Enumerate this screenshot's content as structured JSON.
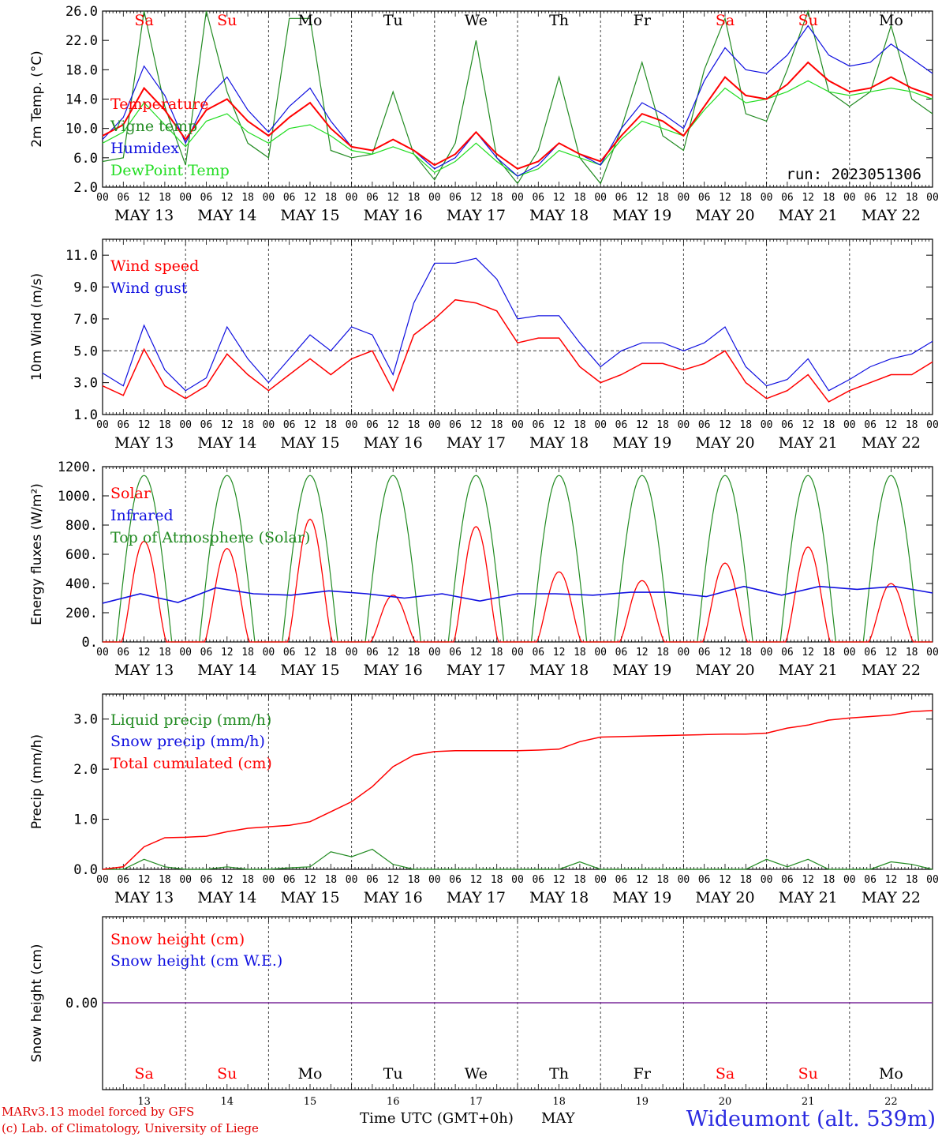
{
  "dates": [
    "MAY 13",
    "MAY 14",
    "MAY 15",
    "MAY 16",
    "MAY 17",
    "MAY 18",
    "MAY 19",
    "MAY 20",
    "MAY 21",
    "MAY 22"
  ],
  "day_abbr": [
    "Sa",
    "Su",
    "Mo",
    "Tu",
    "We",
    "Th",
    "Fr",
    "Sa",
    "Su",
    "Mo"
  ],
  "day_nums": [
    "13",
    "14",
    "15",
    "16",
    "17",
    "18",
    "19",
    "20",
    "21",
    "22"
  ],
  "hour_ticks": [
    "00",
    "06",
    "12",
    "18"
  ],
  "run_label": "run: 2023051306",
  "footer": {
    "model": "MARv3.13 model forced by GFS",
    "credit": "(c) Lab. of Climatology, University of Liege",
    "axis_title": "Time UTC (GMT+0h)",
    "month": "MAY",
    "station": "Wideumont (alt. 539m)"
  },
  "colors": {
    "red": "#ff0000",
    "darkgreen": "#228b22",
    "blue": "#1010e0",
    "lightgreen": "#22dd22",
    "purple": "#7a2a9a"
  },
  "chart_data": [
    {
      "type": "line",
      "ylabel": "2m Temp. (°C)",
      "ylim": [
        2.0,
        26.0
      ],
      "yticks": [
        "2.0",
        "6.0",
        "10.0",
        "14.0",
        "18.0",
        "22.0",
        "26.0"
      ],
      "x_hours": [
        0,
        6,
        12,
        18,
        24,
        30,
        36,
        42,
        48,
        54,
        60,
        66,
        72,
        78,
        84,
        90,
        96,
        102,
        108,
        114,
        120,
        126,
        132,
        138,
        144,
        150,
        156,
        162,
        168,
        174,
        180,
        186,
        192,
        198,
        204,
        210,
        216,
        222,
        228,
        234,
        240
      ],
      "series": [
        {
          "name": "Temperature",
          "color": "red",
          "values": [
            9.0,
            10.5,
            15.5,
            12.5,
            8.5,
            12.5,
            14.0,
            11.0,
            9.0,
            11.5,
            13.5,
            10.0,
            7.5,
            7.0,
            8.5,
            7.0,
            5.0,
            6.5,
            9.5,
            6.5,
            4.5,
            5.5,
            8.0,
            6.5,
            5.5,
            9.0,
            12.0,
            11.0,
            9.0,
            13.0,
            17.0,
            14.5,
            14.0,
            16.0,
            19.0,
            16.5,
            15.0,
            15.5,
            17.0,
            15.5,
            14.5
          ]
        },
        {
          "name": "Vigne temp",
          "color": "darkgreen",
          "values": [
            5.5,
            6.0,
            26.0,
            13.0,
            5.0,
            26.0,
            15.0,
            8.0,
            6.0,
            25.0,
            25.0,
            7.0,
            6.0,
            6.5,
            15.0,
            6.5,
            3.0,
            8.0,
            22.0,
            6.0,
            2.5,
            7.0,
            17.0,
            6.0,
            2.5,
            10.0,
            19.0,
            9.0,
            7.0,
            18.0,
            25.0,
            12.0,
            11.0,
            18.0,
            27.0,
            15.0,
            13.0,
            15.0,
            24.0,
            14.0,
            12.0
          ]
        },
        {
          "name": "Humidex",
          "color": "blue",
          "values": [
            8.5,
            11.5,
            18.5,
            14.5,
            8.0,
            14.0,
            17.0,
            12.5,
            9.5,
            13.0,
            15.5,
            11.0,
            7.5,
            7.0,
            8.5,
            7.0,
            4.5,
            6.0,
            9.5,
            6.0,
            3.5,
            5.0,
            8.0,
            6.5,
            5.0,
            10.0,
            13.5,
            12.0,
            10.0,
            16.5,
            21.0,
            18.0,
            17.5,
            20.0,
            24.0,
            20.0,
            18.5,
            19.0,
            21.5,
            19.5,
            17.5
          ]
        },
        {
          "name": "DewPoint Temp",
          "color": "lightgreen",
          "values": [
            8.0,
            9.5,
            13.5,
            10.5,
            7.5,
            11.0,
            12.0,
            9.5,
            8.0,
            10.0,
            10.5,
            9.0,
            7.0,
            6.5,
            7.5,
            6.5,
            4.0,
            5.5,
            8.0,
            5.5,
            3.5,
            4.5,
            7.0,
            6.0,
            5.0,
            8.5,
            11.0,
            10.0,
            9.0,
            12.5,
            15.5,
            13.5,
            14.0,
            15.0,
            16.5,
            15.0,
            14.5,
            15.0,
            15.5,
            15.0,
            14.0
          ]
        }
      ]
    },
    {
      "type": "line",
      "ylabel": "10m Wind (m/s)",
      "ylim": [
        1.0,
        12.0
      ],
      "yticks": [
        "1.0",
        "3.0",
        "5.0",
        "7.0",
        "9.0",
        "11.0"
      ],
      "reference_line": 5.0,
      "x_hours": [
        0,
        6,
        12,
        18,
        24,
        30,
        36,
        42,
        48,
        54,
        60,
        66,
        72,
        78,
        84,
        90,
        96,
        102,
        108,
        114,
        120,
        126,
        132,
        138,
        144,
        150,
        156,
        162,
        168,
        174,
        180,
        186,
        192,
        198,
        204,
        210,
        216,
        222,
        228,
        234,
        240
      ],
      "series": [
        {
          "name": "Wind speed",
          "color": "red",
          "values": [
            2.8,
            2.2,
            5.1,
            2.8,
            2.0,
            2.8,
            4.8,
            3.5,
            2.5,
            3.5,
            4.5,
            3.5,
            4.5,
            5.0,
            2.5,
            6.0,
            7.0,
            8.2,
            8.0,
            7.5,
            5.5,
            5.8,
            5.8,
            4.0,
            3.0,
            3.5,
            4.2,
            4.2,
            3.8,
            4.2,
            5.0,
            3.0,
            2.0,
            2.5,
            3.5,
            1.8,
            2.5,
            3.0,
            3.5,
            3.5,
            4.3
          ]
        },
        {
          "name": "Wind gust",
          "color": "blue",
          "values": [
            3.6,
            2.8,
            6.6,
            3.8,
            2.5,
            3.3,
            6.5,
            4.5,
            3.0,
            4.5,
            6.0,
            5.0,
            6.5,
            6.0,
            3.5,
            8.0,
            10.5,
            10.5,
            10.8,
            9.5,
            7.0,
            7.2,
            7.2,
            5.5,
            4.0,
            5.0,
            5.5,
            5.5,
            5.0,
            5.5,
            6.5,
            4.0,
            2.8,
            3.2,
            4.5,
            2.5,
            3.2,
            4.0,
            4.5,
            4.8,
            5.6
          ]
        }
      ]
    },
    {
      "type": "line",
      "ylabel": "Energy fluxes (W/m²)",
      "ylim": [
        0,
        1200
      ],
      "yticks": [
        "0.",
        "200.",
        "400.",
        "600.",
        "800.",
        "1000.",
        "1200."
      ],
      "daily_toa_peak": 1140,
      "daily_solar_peak": [
        690,
        640,
        840,
        320,
        790,
        480,
        420,
        540,
        650,
        400
      ],
      "series": [
        {
          "name": "Solar",
          "color": "red"
        },
        {
          "name": "Infrared",
          "color": "blue",
          "values": [
            265,
            330,
            270,
            370,
            330,
            320,
            350,
            330,
            300,
            330,
            280,
            330,
            330,
            320,
            340,
            340,
            310,
            380,
            320,
            380,
            360,
            380,
            335
          ]
        },
        {
          "name": "Top of Atmosphere (Solar)",
          "color": "darkgreen"
        }
      ]
    },
    {
      "type": "line",
      "ylabel": "Precip (mm/h)",
      "ylim": [
        0.0,
        3.5
      ],
      "yticks": [
        "0.0",
        "1.0",
        "2.0",
        "3.0"
      ],
      "x_hours": [
        0,
        6,
        12,
        18,
        24,
        30,
        36,
        42,
        48,
        54,
        60,
        66,
        72,
        78,
        84,
        90,
        96,
        102,
        108,
        114,
        120,
        126,
        132,
        138,
        144,
        150,
        156,
        162,
        168,
        174,
        180,
        186,
        192,
        198,
        204,
        210,
        216,
        222,
        228,
        234,
        240
      ],
      "series": [
        {
          "name": "Liquid precip (mm/h)",
          "color": "darkgreen",
          "values": [
            0,
            0,
            0.2,
            0.05,
            0,
            0,
            0.05,
            0,
            0,
            0.03,
            0.05,
            0.35,
            0.25,
            0.4,
            0.1,
            0,
            0,
            0,
            0,
            0,
            0,
            0,
            0,
            0.15,
            0,
            0,
            0,
            0,
            0,
            0,
            0,
            0,
            0.2,
            0.05,
            0.2,
            0,
            0,
            0,
            0.15,
            0.1,
            0
          ]
        },
        {
          "name": "Snow precip (mm/h)",
          "color": "blue",
          "values": []
        },
        {
          "name": "Total cumulated (cm)",
          "color": "red",
          "values": [
            0,
            0.05,
            0.45,
            0.63,
            0.64,
            0.66,
            0.75,
            0.82,
            0.85,
            0.88,
            0.95,
            1.15,
            1.35,
            1.65,
            2.05,
            2.28,
            2.35,
            2.37,
            2.37,
            2.37,
            2.37,
            2.38,
            2.4,
            2.55,
            2.64,
            2.65,
            2.66,
            2.67,
            2.68,
            2.69,
            2.7,
            2.7,
            2.72,
            2.82,
            2.88,
            2.98,
            3.02,
            3.05,
            3.08,
            3.15,
            3.17
          ]
        }
      ]
    },
    {
      "type": "line",
      "ylabel": "Snow height (cm)",
      "yticks": [
        "0.00"
      ],
      "series": [
        {
          "name": "Snow height (cm)",
          "color": "red",
          "values": [
            0,
            0
          ]
        },
        {
          "name": "Snow height (cm W.E.)",
          "color": "blue",
          "values": [
            0,
            0
          ]
        }
      ]
    }
  ]
}
